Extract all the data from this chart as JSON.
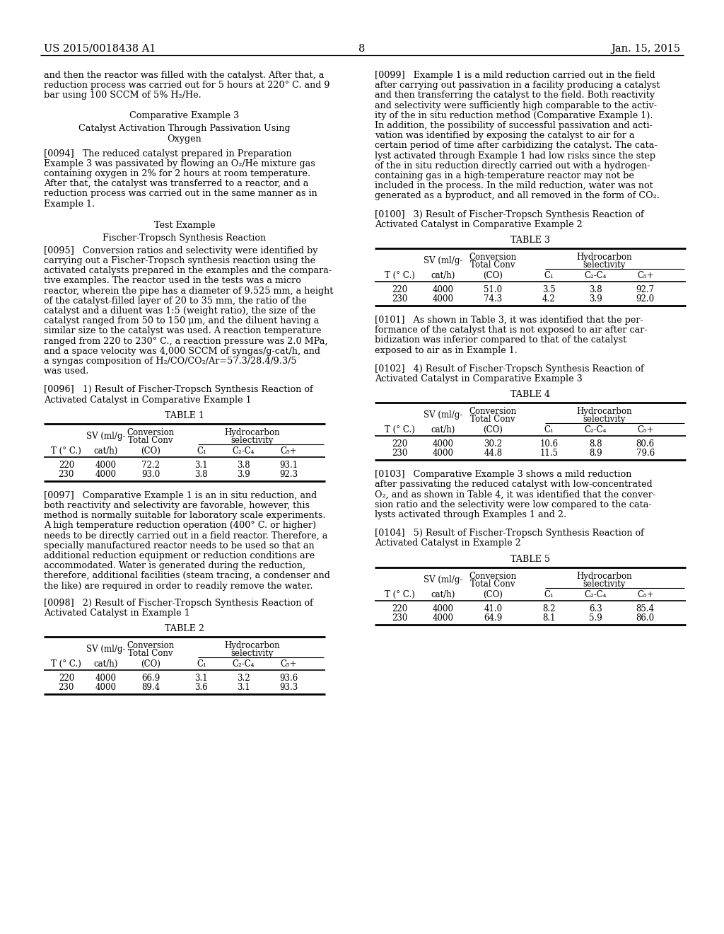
{
  "header_left": "US 2015/0018438 A1",
  "header_right": "Jan. 15, 2015",
  "page_number": "8",
  "background_color": "#ffffff",
  "text_color": "#000000",
  "left_column": {
    "intro_text": "and then the reactor was filled with the catalyst. After that, a\nreduction process was carried out for 5 hours at 220° C. and 9\nbar using 100 SCCM of 5% H₂/He.",
    "section1_title": "Comparative Example 3",
    "section1_subtitle": "Catalyst Activation Through Passivation Using\nOxygen",
    "para0094": "[0094]   The reduced catalyst prepared in Preparation\nExample 3 was passivated by flowing an O₂/He mixture gas\ncontaining oxygen in 2% for 2 hours at room temperature.\nAfter that, the catalyst was transferred to a reactor, and a\nreduction process was carried out in the same manner as in\nExample 1.",
    "section2_title": "Test Example",
    "section2_subtitle": "Fischer-Tropsch Synthesis Reaction",
    "para0095": "[0095]   Conversion ratios and selectivity were identified by\ncarrying out a Fischer-Tropsch synthesis reaction using the\nactivated catalysts prepared in the examples and the compara-\ntive examples. The reactor used in the tests was a micro\nreactor, wherein the pipe has a diameter of 9.525 mm, a height\nof the catalyst-filled layer of 20 to 35 mm, the ratio of the\ncatalyst and a diluent was 1:5 (weight ratio), the size of the\ncatalyst ranged from 50 to 150 μm, and the diluent having a\nsimilar size to the catalyst was used. A reaction temperature\nranged from 220 to 230° C., a reaction pressure was 2.0 MPa,\nand a space velocity was 4,000 SCCM of syngas/g-cat/h, and\na syngas composition of H₂/CO/CO₂/Ar=57.3/28.4/9.3/5\nwas used.",
    "para0096": "[0096]   1) Result of Fischer-Tropsch Synthesis Reaction of\nActivated Catalyst in Comparative Example 1",
    "table1_title": "TABLE 1",
    "table1_col_headers": [
      "T (° C.)",
      "cat/h)",
      "(CO)",
      "C₁",
      "C₂-C₄",
      "C₅+"
    ],
    "table1_data": [
      [
        "220",
        "4000",
        "72.2",
        "3.1",
        "3.8",
        "93.1"
      ],
      [
        "230",
        "4000",
        "93.0",
        "3.8",
        "3.9",
        "92.3"
      ]
    ],
    "para0097": "[0097]   Comparative Example 1 is an in situ reduction, and\nboth reactivity and selectivity are favorable, however, this\nmethod is normally suitable for laboratory scale experiments.\nA high temperature reduction operation (400° C. or higher)\nneeds to be directly carried out in a field reactor. Therefore, a\nspecially manufactured reactor needs to be used so that an\nadditional reduction equipment or reduction conditions are\naccommodated. Water is generated during the reduction,\ntherefore, additional facilities (steam tracing, a condenser and\nthe like) are required in order to readily remove the water.",
    "para0098": "[0098]   2) Result of Fischer-Tropsch Synthesis Reaction of\nActivated Catalyst in Example 1",
    "table2_title": "TABLE 2",
    "table2_col_headers": [
      "T (° C.)",
      "cat/h)",
      "(CO)",
      "C₁",
      "C₂-C₄",
      "C₅+"
    ],
    "table2_data": [
      [
        "220",
        "4000",
        "66.9",
        "3.1",
        "3.2",
        "93.6"
      ],
      [
        "230",
        "4000",
        "89.4",
        "3.6",
        "3.1",
        "93.3"
      ]
    ]
  },
  "right_column": {
    "para0099": "[0099]   Example 1 is a mild reduction carried out in the field\nafter carrying out passivation in a facility producing a catalyst\nand then transferring the catalyst to the field. Both reactivity\nand selectivity were sufficiently high comparable to the activ-\nity of the in situ reduction method (Comparative Example 1).\nIn addition, the possibility of successful passivation and acti-\nvation was identified by exposing the catalyst to air for a\ncertain period of time after carbidizing the catalyst. The cata-\nlyst activated through Example 1 had low risks since the step\nof the in situ reduction directly carried out with a hydrogen-\ncontaining gas in a high-temperature reactor may not be\nincluded in the process. In the mild reduction, water was not\ngenerated as a byproduct, and all removed in the form of CO₂.",
    "para0100": "[0100]   3) Result of Fischer-Tropsch Synthesis Reaction of\nActivated Catalyst in Comparative Example 2",
    "table3_title": "TABLE 3",
    "table3_col_headers": [
      "T (° C.)",
      "cat/h)",
      "(CO)",
      "C₁",
      "C₂-C₄",
      "C₅+"
    ],
    "table3_data": [
      [
        "220",
        "4000",
        "51.0",
        "3.5",
        "3.8",
        "92.7"
      ],
      [
        "230",
        "4000",
        "74.3",
        "4.2",
        "3.9",
        "92.0"
      ]
    ],
    "para0101": "[0101]   As shown in Table 3, it was identified that the per-\nformance of the catalyst that is not exposed to air after car-\nbidization was inferior compared to that of the catalyst\nexposed to air as in Example 1.",
    "para0102": "[0102]   4) Result of Fischer-Tropsch Synthesis Reaction of\nActivated Catalyst in Comparative Example 3",
    "table4_title": "TABLE 4",
    "table4_col_headers": [
      "T (° C.)",
      "cat/h)",
      "(CO)",
      "C₁",
      "C₂-C₄",
      "C₅+"
    ],
    "table4_data": [
      [
        "220",
        "4000",
        "30.2",
        "10.6",
        "8.8",
        "80.6"
      ],
      [
        "230",
        "4000",
        "44.8",
        "11.5",
        "8.9",
        "79.6"
      ]
    ],
    "para0103": "[0103]   Comparative Example 3 shows a mild reduction\nafter passivating the reduced catalyst with low-concentrated\nO₂, and as shown in Table 4, it was identified that the conver-\nsion ratio and the selectivity were low compared to the cata-\nlysts activated through Examples 1 and 2.",
    "para0104": "[0104]   5) Result of Fischer-Tropsch Synthesis Reaction of\nActivated Catalyst in Example 2",
    "table5_title": "TABLE 5",
    "table5_col_headers": [
      "T (° C.)",
      "cat/h)",
      "(CO)",
      "C₁",
      "C₂-C₄",
      "C₅+"
    ],
    "table5_data": [
      [
        "220",
        "4000",
        "41.0",
        "8.2",
        "6.3",
        "85.4"
      ],
      [
        "230",
        "4000",
        "64.9",
        "8.1",
        "5.9",
        "86.0"
      ]
    ]
  }
}
